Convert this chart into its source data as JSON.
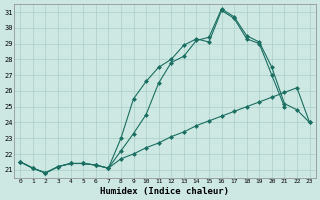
{
  "xlabel": "Humidex (Indice chaleur)",
  "xlim": [
    -0.5,
    23.5
  ],
  "ylim": [
    20.5,
    31.5
  ],
  "xticks": [
    0,
    1,
    2,
    3,
    4,
    5,
    6,
    7,
    8,
    9,
    10,
    11,
    12,
    13,
    14,
    15,
    16,
    17,
    18,
    19,
    20,
    21,
    22,
    23
  ],
  "yticks": [
    21,
    22,
    23,
    24,
    25,
    26,
    27,
    28,
    29,
    30,
    31
  ],
  "background_color": "#cde8e2",
  "grid_color": "#aacfc8",
  "line_color": "#1a6e62",
  "line1_x": [
    0,
    1,
    2,
    3,
    4,
    5,
    6,
    7,
    8,
    9,
    10,
    11,
    12,
    13,
    14,
    15,
    16,
    17,
    18,
    19,
    20,
    21
  ],
  "line1_y": [
    21.5,
    21.1,
    20.8,
    21.2,
    21.4,
    21.4,
    21.3,
    21.1,
    23.0,
    25.5,
    26.6,
    27.5,
    28.0,
    28.9,
    29.3,
    29.1,
    31.1,
    30.6,
    29.3,
    29.0,
    27.0,
    25.0
  ],
  "line2_x": [
    0,
    1,
    2,
    3,
    4,
    5,
    6,
    7,
    8,
    9,
    10,
    11,
    12,
    13,
    14,
    15,
    16,
    17,
    18,
    19,
    20,
    21,
    22,
    23
  ],
  "line2_y": [
    21.5,
    21.1,
    20.8,
    21.2,
    21.4,
    21.4,
    21.3,
    21.1,
    22.2,
    23.3,
    24.5,
    26.5,
    27.8,
    28.2,
    29.2,
    29.4,
    31.2,
    30.7,
    29.5,
    29.1,
    27.5,
    25.2,
    24.8,
    24.0
  ],
  "line3_x": [
    0,
    1,
    2,
    3,
    4,
    5,
    6,
    7,
    8,
    9,
    10,
    11,
    12,
    13,
    14,
    15,
    16,
    17,
    18,
    19,
    20,
    21,
    22,
    23
  ],
  "line3_y": [
    21.5,
    21.1,
    20.8,
    21.2,
    21.4,
    21.4,
    21.3,
    21.1,
    21.7,
    22.0,
    22.4,
    22.7,
    23.1,
    23.4,
    23.8,
    24.1,
    24.4,
    24.7,
    25.0,
    25.3,
    25.6,
    25.9,
    26.2,
    24.0
  ]
}
